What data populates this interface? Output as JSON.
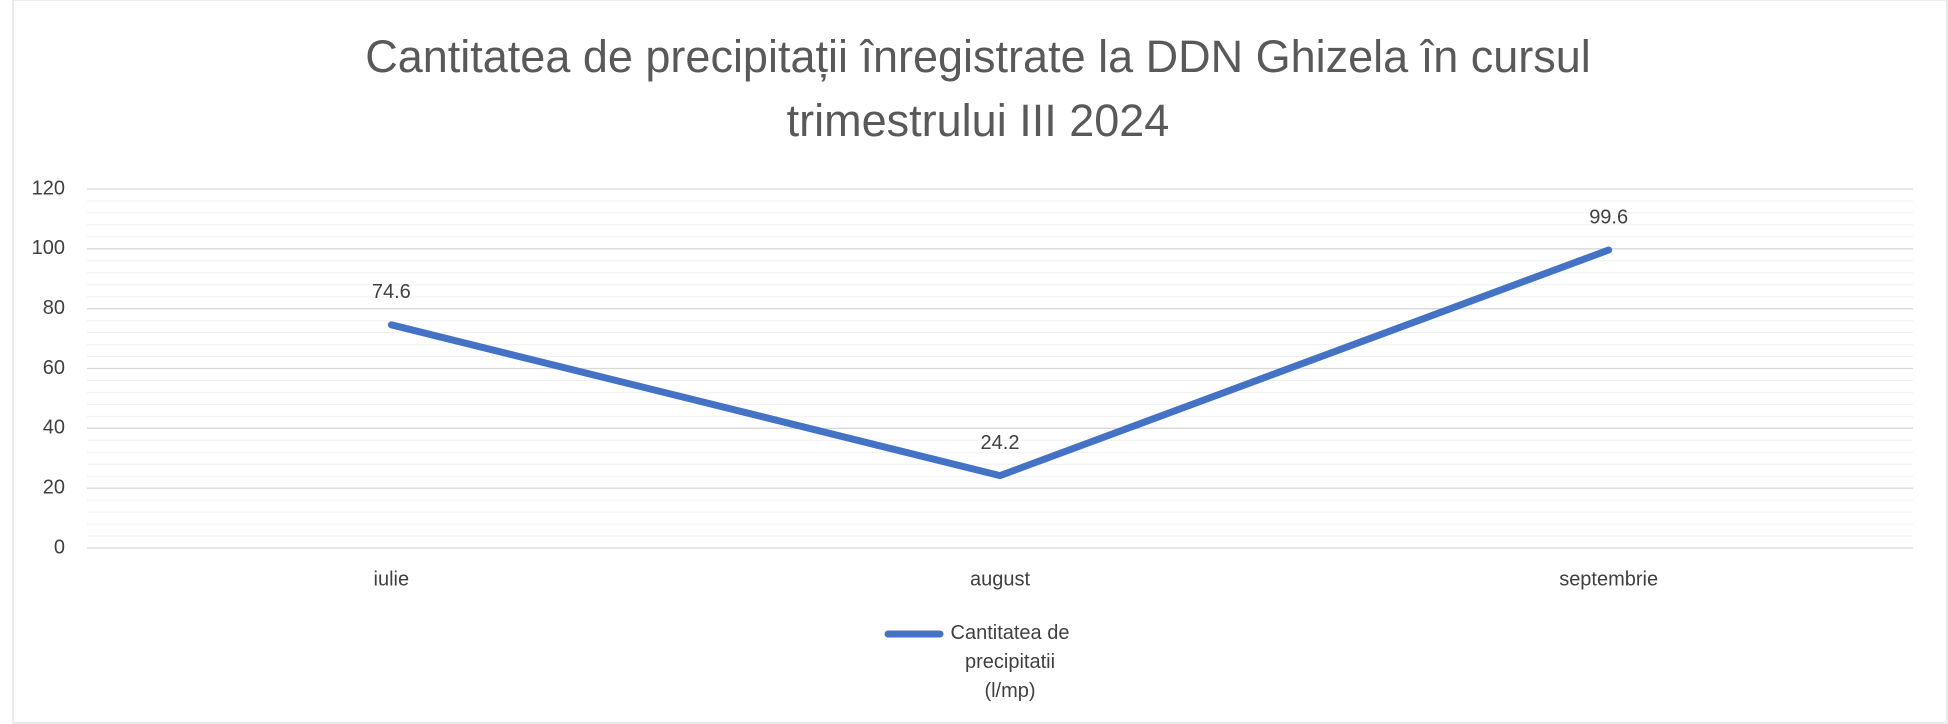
{
  "chart_data": {
    "type": "line",
    "title": "Cantitatea de precipitații înregistrate la DDN Ghizela în cursul trimestrului III 2024",
    "categories": [
      "iulie",
      "august",
      "septembrie"
    ],
    "series": [
      {
        "name": "Cantitatea de precipitatii (l/mp)",
        "color": "#4472c4",
        "values": [
          74.6,
          24.2,
          99.6
        ]
      }
    ],
    "ylim": [
      0,
      120
    ],
    "yticks": [
      0,
      20,
      40,
      60,
      80,
      100,
      120
    ],
    "grid": true,
    "minor_grid": true,
    "data_labels": true,
    "legend": "bottom"
  }
}
